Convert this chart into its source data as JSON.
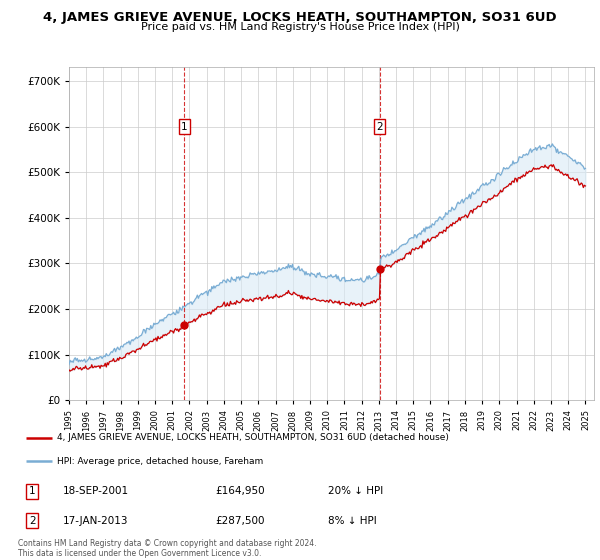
{
  "title": "4, JAMES GRIEVE AVENUE, LOCKS HEATH, SOUTHAMPTON, SO31 6UD",
  "subtitle": "Price paid vs. HM Land Registry's House Price Index (HPI)",
  "legend_line1": "4, JAMES GRIEVE AVENUE, LOCKS HEATH, SOUTHAMPTON, SO31 6UD (detached house)",
  "legend_line2": "HPI: Average price, detached house, Fareham",
  "sale1_date": "18-SEP-2001",
  "sale1_price_val": 164950,
  "sale1_price_str": "£164,950",
  "sale1_hpi": "20% ↓ HPI",
  "sale1_time": 2001.708,
  "sale2_date": "17-JAN-2013",
  "sale2_price_val": 287500,
  "sale2_price_str": "£287,500",
  "sale2_hpi": "8% ↓ HPI",
  "sale2_time": 2013.042,
  "copyright": "Contains HM Land Registry data © Crown copyright and database right 2024.\nThis data is licensed under the Open Government Licence v3.0.",
  "red_line_color": "#cc0000",
  "blue_line_color": "#7aadd4",
  "blue_fill_color": "#d9eaf5",
  "vline_color": "#cc0000",
  "ylim": [
    0,
    730000
  ],
  "yticks": [
    0,
    100000,
    200000,
    300000,
    400000,
    500000,
    600000,
    700000
  ],
  "xmin": 1995.0,
  "xmax": 2025.5,
  "sale1_discount": 0.2,
  "sale2_discount": 0.08,
  "hpi_seed": 42,
  "hpi_n_points": 500
}
